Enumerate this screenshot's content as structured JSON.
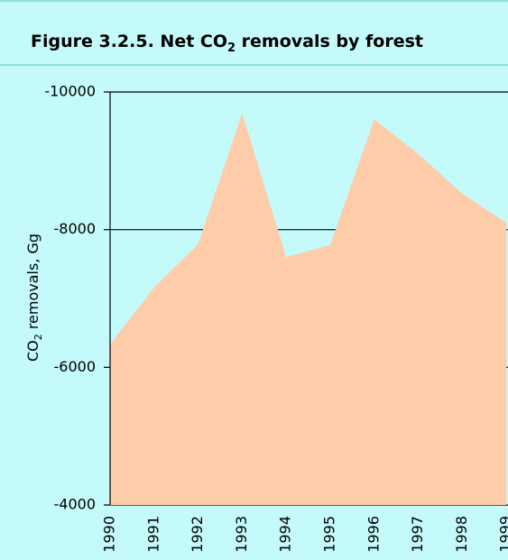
{
  "chart_data": {
    "type": "area",
    "title": [
      "Figure 3.2.5.  Net CO",
      "2",
      " removals by forest"
    ],
    "y_label": [
      "CO",
      "2",
      " removals, Gg"
    ],
    "categories": [
      "1990",
      "1991",
      "1992",
      "1993",
      "1994",
      "1995",
      "1996",
      "1997",
      "1998",
      "1999"
    ],
    "values": [
      -6330,
      -7160,
      -7790,
      -9690,
      -7600,
      -7780,
      -9600,
      -9100,
      -8520,
      -8100
    ],
    "color": "#ffccaa",
    "ylim": [
      -4000,
      -10000
    ],
    "yticks": [
      -10000,
      -8000,
      -6000,
      -4000
    ],
    "grid": true
  }
}
